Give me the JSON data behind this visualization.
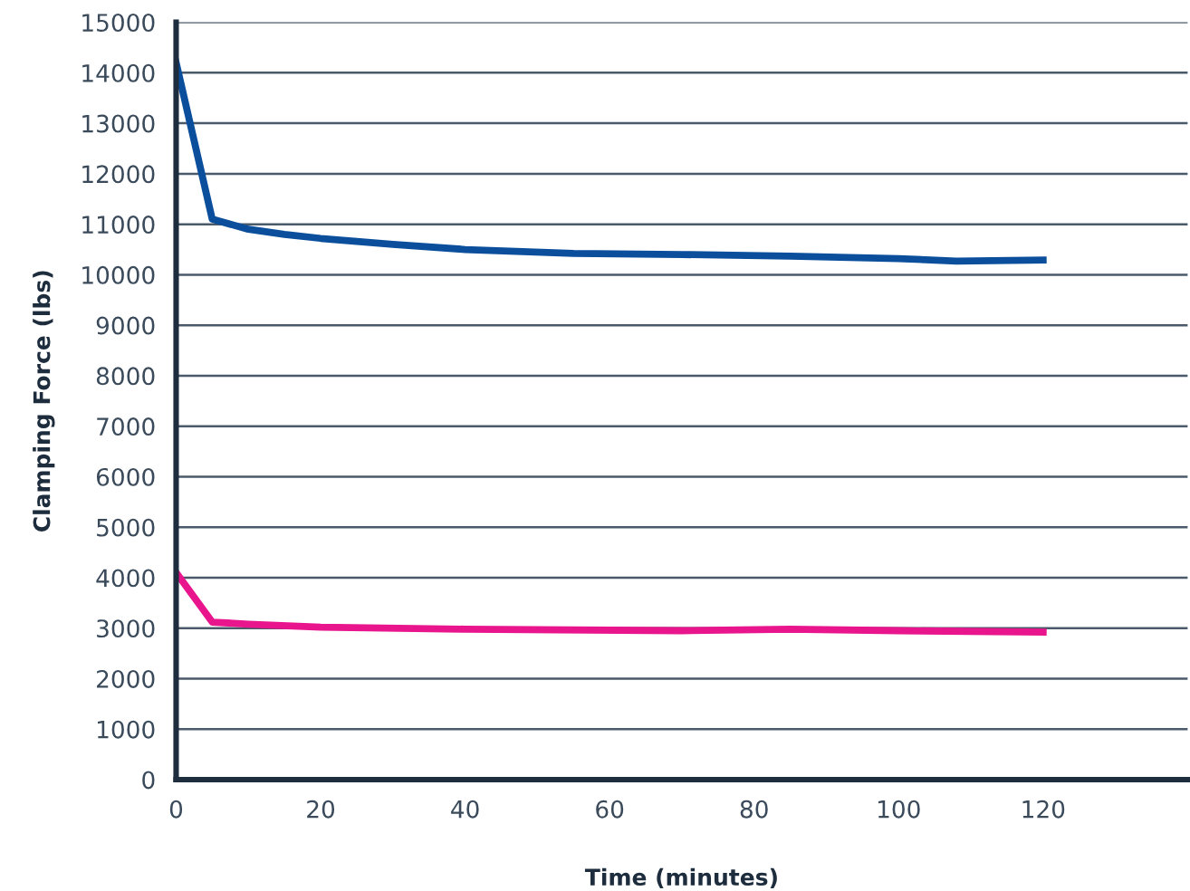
{
  "chart_data": {
    "type": "line",
    "xlabel": "Time (minutes)",
    "ylabel": "Clamping Force (lbs)",
    "xlim": [
      0,
      140
    ],
    "xticks": [
      0,
      20,
      40,
      60,
      80,
      100,
      120
    ],
    "ylim": [
      0,
      15000
    ],
    "yticks": [
      0,
      1000,
      2000,
      3000,
      4000,
      5000,
      6000,
      7000,
      8000,
      9000,
      10000,
      11000,
      12000,
      13000,
      14000,
      15000
    ],
    "grid": "y",
    "legend": false,
    "marker": "none",
    "line_style": "solid",
    "series": [
      {
        "color": "#0b4f9c",
        "x": [
          0,
          5,
          10,
          15,
          20,
          30,
          40,
          55,
          70,
          85,
          100,
          108,
          120
        ],
        "values": [
          14200,
          11100,
          10900,
          10800,
          10720,
          10600,
          10500,
          10420,
          10400,
          10370,
          10320,
          10270,
          10290
        ]
      },
      {
        "color": "#e8158c",
        "x": [
          0,
          5,
          10,
          20,
          40,
          70,
          85,
          100,
          120
        ],
        "values": [
          4100,
          3120,
          3080,
          3020,
          2980,
          2950,
          2980,
          2950,
          2920
        ]
      }
    ]
  }
}
